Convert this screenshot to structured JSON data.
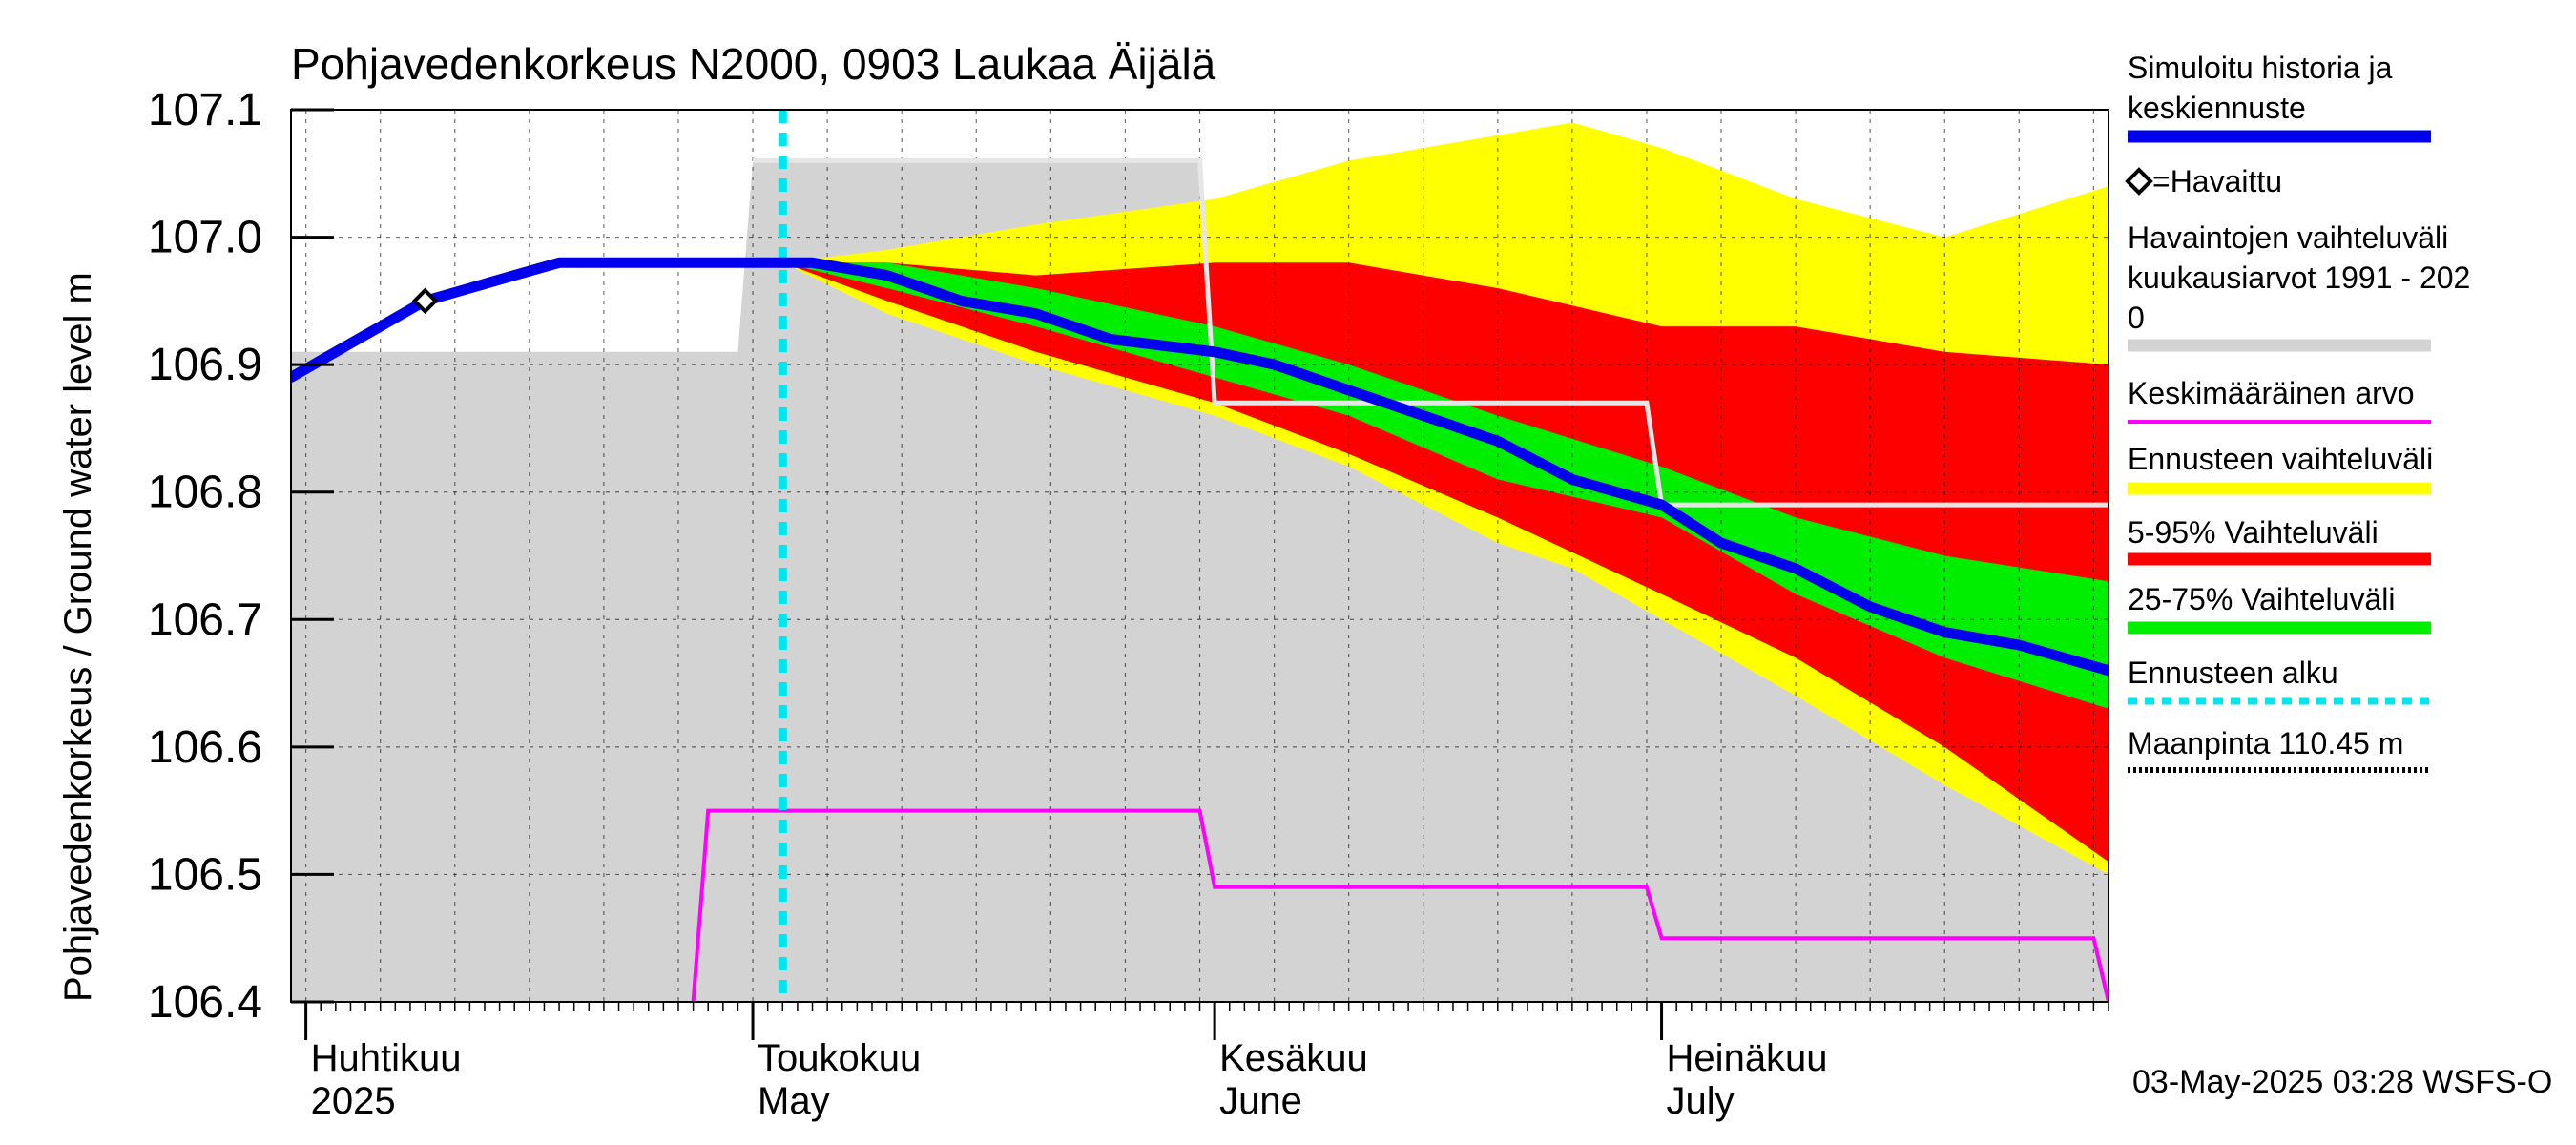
{
  "chart_data": {
    "type": "area",
    "title": "Pohjavedenkorkeus N2000, 0903 Laukaa Äijälä",
    "ylabel": "Pohjavedenkorkeus / Ground water level   m",
    "ylim": [
      106.4,
      107.1
    ],
    "yticks": [
      "106.4",
      "106.5",
      "106.6",
      "106.7",
      "106.8",
      "106.9",
      "107.0",
      "107.1"
    ],
    "xlim": [
      "2025-03-31",
      "2025-07-31"
    ],
    "month_labels": [
      {
        "fi": "Huhtikuu",
        "en": "2025",
        "date": "2025-04-01"
      },
      {
        "fi": "Toukokuu",
        "en": "May",
        "date": "2025-05-01"
      },
      {
        "fi": "Kesäkuu",
        "en": "June",
        "date": "2025-06-01"
      },
      {
        "fi": "Heinäkuu",
        "en": "July",
        "date": "2025-07-01"
      }
    ],
    "timestamp": "03-May-2025 03:28 WSFS-O",
    "colors": {
      "history_range": "#d3d3d3",
      "forecast_range": "#ffff00",
      "range_5_95": "#ff0000",
      "range_25_75": "#00ee00",
      "simulated": "#0000ee",
      "mean": "#ff00ff",
      "forecast_start": "#00e5ee",
      "median_line": "#e6e6e6"
    },
    "legend": [
      {
        "label": "Simuloitu historia ja keskiennuste",
        "style": "simulated"
      },
      {
        "label": "=Havaittu",
        "style": "observed"
      },
      {
        "label": "Havaintojen vaihteluväli kuukausiarvot 1991 - 2020",
        "style": "history_range"
      },
      {
        "label": "Keskimääräinen arvo",
        "style": "mean"
      },
      {
        "label": "Ennusteen vaihteluväli",
        "style": "forecast_range"
      },
      {
        "label": "5-95% Vaihteluväli",
        "style": "range_5_95"
      },
      {
        "label": "25-75% Vaihteluväli",
        "style": "range_25_75"
      },
      {
        "label": "Ennusteen alku",
        "style": "forecast_start"
      },
      {
        "label": "Maanpinta 110.45 m",
        "style": "ground"
      }
    ],
    "forecast_start_date": "2025-05-03",
    "observed": [
      {
        "date": "2025-04-09",
        "value": 106.95
      }
    ],
    "history_range": [
      {
        "date": "2025-03-31",
        "min": 106.4,
        "max": 106.91
      },
      {
        "date": "2025-04-30",
        "min": 106.4,
        "max": 106.91
      },
      {
        "date": "2025-05-01",
        "min": 106.4,
        "max": 107.06
      },
      {
        "date": "2025-05-31",
        "min": 106.4,
        "max": 107.06
      },
      {
        "date": "2025-06-01",
        "min": 106.4,
        "max": 106.87
      },
      {
        "date": "2025-06-30",
        "min": 106.4,
        "max": 106.87
      },
      {
        "date": "2025-07-01",
        "min": 106.4,
        "max": 106.79
      },
      {
        "date": "2025-07-31",
        "min": 106.4,
        "max": 106.79
      }
    ],
    "history_median": [
      {
        "date": "2025-05-01",
        "value": 107.06
      },
      {
        "date": "2025-05-31",
        "value": 107.06
      },
      {
        "date": "2025-06-01",
        "value": 106.87
      },
      {
        "date": "2025-06-30",
        "value": 106.87
      },
      {
        "date": "2025-07-01",
        "value": 106.79
      },
      {
        "date": "2025-07-31",
        "value": 106.79
      }
    ],
    "mean": [
      {
        "date": "2025-04-27",
        "value": 106.4
      },
      {
        "date": "2025-04-28",
        "value": 106.55
      },
      {
        "date": "2025-05-31",
        "value": 106.55
      },
      {
        "date": "2025-06-01",
        "value": 106.49
      },
      {
        "date": "2025-06-30",
        "value": 106.49
      },
      {
        "date": "2025-07-01",
        "value": 106.45
      },
      {
        "date": "2025-07-30",
        "value": 106.45
      },
      {
        "date": "2025-07-31",
        "value": 106.4
      }
    ],
    "forecast_band": [
      {
        "date": "2025-05-03",
        "min": 106.98,
        "max": 106.98
      },
      {
        "date": "2025-05-10",
        "min": 106.94,
        "max": 106.99
      },
      {
        "date": "2025-05-20",
        "min": 106.9,
        "max": 107.01
      },
      {
        "date": "2025-06-01",
        "min": 106.86,
        "max": 107.03
      },
      {
        "date": "2025-06-10",
        "min": 106.82,
        "max": 107.06
      },
      {
        "date": "2025-06-20",
        "min": 106.76,
        "max": 107.08
      },
      {
        "date": "2025-06-25",
        "min": 106.74,
        "max": 107.09
      },
      {
        "date": "2025-07-01",
        "min": 106.7,
        "max": 107.07
      },
      {
        "date": "2025-07-10",
        "min": 106.64,
        "max": 107.03
      },
      {
        "date": "2025-07-20",
        "min": 106.57,
        "max": 107.0
      },
      {
        "date": "2025-07-31",
        "min": 106.5,
        "max": 107.04
      }
    ],
    "range_5_95": [
      {
        "date": "2025-05-03",
        "min": 106.98,
        "max": 106.98
      },
      {
        "date": "2025-05-10",
        "min": 106.95,
        "max": 106.98
      },
      {
        "date": "2025-05-20",
        "min": 106.91,
        "max": 106.97
      },
      {
        "date": "2025-06-01",
        "min": 106.87,
        "max": 106.98
      },
      {
        "date": "2025-06-10",
        "min": 106.83,
        "max": 106.98
      },
      {
        "date": "2025-06-20",
        "min": 106.78,
        "max": 106.96
      },
      {
        "date": "2025-07-01",
        "min": 106.72,
        "max": 106.93
      },
      {
        "date": "2025-07-10",
        "min": 106.67,
        "max": 106.93
      },
      {
        "date": "2025-07-20",
        "min": 106.6,
        "max": 106.91
      },
      {
        "date": "2025-07-31",
        "min": 106.51,
        "max": 106.9
      }
    ],
    "range_25_75": [
      {
        "date": "2025-05-03",
        "min": 106.98,
        "max": 106.98
      },
      {
        "date": "2025-05-10",
        "min": 106.96,
        "max": 106.98
      },
      {
        "date": "2025-05-20",
        "min": 106.93,
        "max": 106.96
      },
      {
        "date": "2025-06-01",
        "min": 106.89,
        "max": 106.93
      },
      {
        "date": "2025-06-10",
        "min": 106.86,
        "max": 106.9
      },
      {
        "date": "2025-06-20",
        "min": 106.81,
        "max": 106.86
      },
      {
        "date": "2025-07-01",
        "min": 106.78,
        "max": 106.82
      },
      {
        "date": "2025-07-10",
        "min": 106.72,
        "max": 106.78
      },
      {
        "date": "2025-07-20",
        "min": 106.67,
        "max": 106.75
      },
      {
        "date": "2025-07-31",
        "min": 106.63,
        "max": 106.73
      }
    ],
    "simulated": [
      {
        "date": "2025-03-31",
        "value": 106.89
      },
      {
        "date": "2025-04-03",
        "value": 106.91
      },
      {
        "date": "2025-04-06",
        "value": 106.93
      },
      {
        "date": "2025-04-09",
        "value": 106.95
      },
      {
        "date": "2025-04-12",
        "value": 106.96
      },
      {
        "date": "2025-04-15",
        "value": 106.97
      },
      {
        "date": "2025-04-18",
        "value": 106.98
      },
      {
        "date": "2025-04-21",
        "value": 106.98
      },
      {
        "date": "2025-04-25",
        "value": 106.98
      },
      {
        "date": "2025-04-28",
        "value": 106.98
      },
      {
        "date": "2025-05-01",
        "value": 106.98
      },
      {
        "date": "2025-05-05",
        "value": 106.98
      },
      {
        "date": "2025-05-10",
        "value": 106.97
      },
      {
        "date": "2025-05-15",
        "value": 106.95
      },
      {
        "date": "2025-05-20",
        "value": 106.94
      },
      {
        "date": "2025-05-25",
        "value": 106.92
      },
      {
        "date": "2025-06-01",
        "value": 106.91
      },
      {
        "date": "2025-06-05",
        "value": 106.9
      },
      {
        "date": "2025-06-10",
        "value": 106.88
      },
      {
        "date": "2025-06-15",
        "value": 106.86
      },
      {
        "date": "2025-06-20",
        "value": 106.84
      },
      {
        "date": "2025-06-25",
        "value": 106.81
      },
      {
        "date": "2025-07-01",
        "value": 106.79
      },
      {
        "date": "2025-07-05",
        "value": 106.76
      },
      {
        "date": "2025-07-10",
        "value": 106.74
      },
      {
        "date": "2025-07-15",
        "value": 106.71
      },
      {
        "date": "2025-07-20",
        "value": 106.69
      },
      {
        "date": "2025-07-25",
        "value": 106.68
      },
      {
        "date": "2025-07-31",
        "value": 106.66
      }
    ]
  }
}
